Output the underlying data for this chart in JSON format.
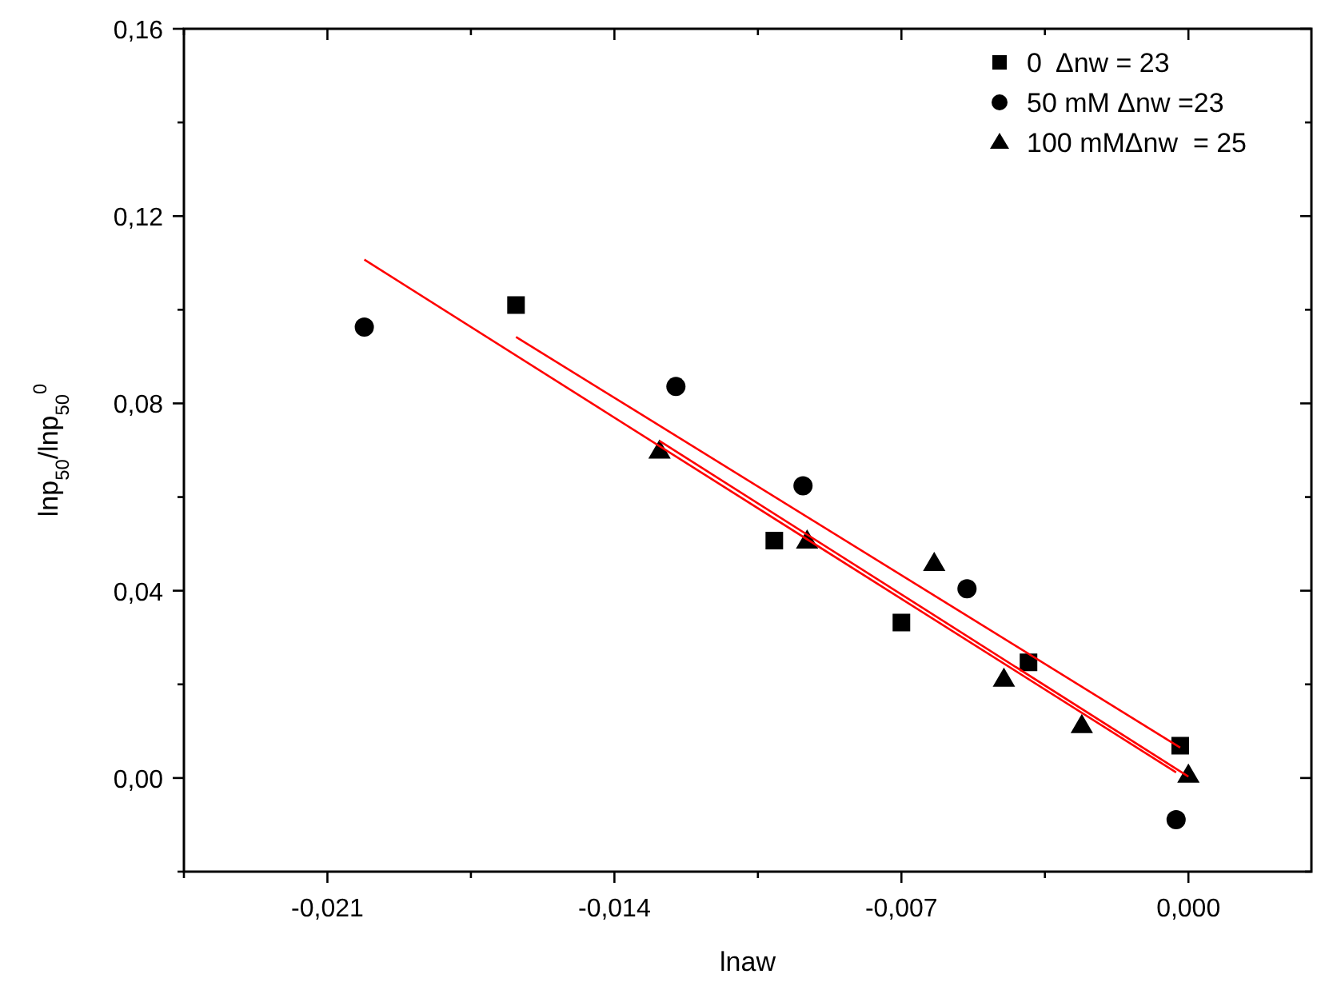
{
  "chart_data": {
    "type": "scatter",
    "xlabel": "lnaw",
    "ylabel": "lnp$_{50}$/lnp$_{50}$$^{0}$",
    "xlim": [
      -0.0245,
      0.003
    ],
    "ylim": [
      -0.02,
      0.16
    ],
    "xticks": [
      {
        "value": -0.0245,
        "label": null
      },
      {
        "value": -0.021,
        "label": "-0,021"
      },
      {
        "value": -0.0175,
        "label": null
      },
      {
        "value": -0.014,
        "label": "-0,014"
      },
      {
        "value": -0.0105,
        "label": null
      },
      {
        "value": -0.007,
        "label": "-0,007"
      },
      {
        "value": -0.0035,
        "label": null
      },
      {
        "value": 0,
        "label": "0,000"
      }
    ],
    "yticks": [
      {
        "value": -0.02,
        "label": null
      },
      {
        "value": 0,
        "label": "0,00"
      },
      {
        "value": 0.02,
        "label": null
      },
      {
        "value": 0.04,
        "label": "0,04"
      },
      {
        "value": 0.06,
        "label": null
      },
      {
        "value": 0.08,
        "label": "0,08"
      },
      {
        "value": 0.1,
        "label": null
      },
      {
        "value": 0.12,
        "label": "0,12"
      },
      {
        "value": 0.14,
        "label": null
      },
      {
        "value": 0.16,
        "label": "0,16"
      }
    ],
    "grid": false,
    "legend": "top right",
    "series": [
      {
        "name": "0  Δnw = 23",
        "type": "scatter",
        "marker": "square",
        "color": "#000000",
        "x": [
          -0.0164,
          -0.0101,
          -0.007,
          -0.0039,
          -0.0002
        ],
        "values": [
          0.101,
          0.0507,
          0.0332,
          0.0247,
          0.0069
        ]
      },
      {
        "name": "50 mM Δnw =23",
        "type": "scatter",
        "marker": "circle",
        "color": "#000000",
        "x": [
          -0.0201,
          -0.0125,
          -0.0094,
          -0.0054,
          -0.0003
        ],
        "values": [
          0.0963,
          0.0836,
          0.0624,
          0.0404,
          -0.0089
        ]
      },
      {
        "name": "100 mMΔnw  = 25",
        "type": "scatter",
        "marker": "triangle",
        "color": "#000000",
        "x": [
          -0.0129,
          -0.0093,
          -0.0062,
          -0.0045,
          -0.0026,
          0
        ],
        "values": [
          0.0699,
          0.0507,
          0.0459,
          0.0212,
          0.0113,
          0.0007
        ]
      },
      {
        "type": "line",
        "marker": "none",
        "color": "#ff0000",
        "x": [
          -0.0164,
          -0.0002
        ],
        "values": [
          0.0942,
          0.0065
        ]
      },
      {
        "type": "line",
        "marker": "none",
        "color": "#ff0000",
        "x": [
          -0.0201,
          -0.0003
        ],
        "values": [
          0.1107,
          0.0012
        ]
      },
      {
        "type": "line",
        "marker": "none",
        "color": "#ff0000",
        "x": [
          -0.0129,
          0
        ],
        "values": [
          0.072,
          0.0003
        ]
      }
    ]
  }
}
